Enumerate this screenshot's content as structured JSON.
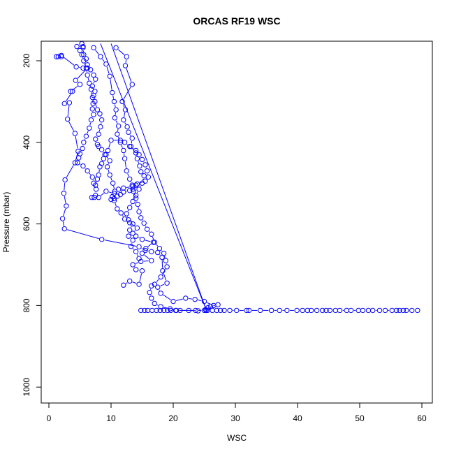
{
  "chart_data": {
    "type": "scatter",
    "title": "ORCAS RF19 WSC",
    "xlabel": "WSC",
    "ylabel": "Pressure (mbar)",
    "xlim": [
      0,
      60
    ],
    "ylim": [
      1050,
      155
    ],
    "y_reversed": true,
    "x_ticks": [
      0,
      10,
      20,
      30,
      40,
      50,
      60
    ],
    "y_ticks": [
      200,
      400,
      600,
      800,
      1000
    ],
    "grid": false,
    "legend": "none",
    "color": "#0000ff",
    "marker": "open-circle",
    "series": [
      {
        "points": [
          [
            1.2,
            190
          ],
          [
            1.5,
            190
          ],
          [
            2.0,
            190
          ],
          [
            2.0,
            187
          ],
          [
            4.4,
            215
          ],
          [
            5.5,
            218
          ],
          [
            6.2,
            218
          ],
          [
            4.3,
            248
          ],
          [
            5.0,
            258
          ],
          [
            3.5,
            275
          ],
          [
            3.8,
            275
          ],
          [
            2.5,
            305
          ],
          [
            3.3,
            303
          ],
          [
            3.0,
            343
          ],
          [
            4.2,
            378
          ],
          [
            4.7,
            422
          ],
          [
            4.2,
            450
          ],
          [
            2.6,
            492
          ],
          [
            2.4,
            525
          ],
          [
            2.8,
            556
          ],
          [
            2.2,
            587
          ],
          [
            2.5,
            612
          ],
          [
            8.5,
            638
          ],
          [
            14.5,
            656
          ],
          [
            15.5,
            665
          ],
          [
            16.5,
            668
          ],
          [
            17.5,
            670
          ],
          [
            18.2,
            682
          ],
          [
            18.3,
            715
          ],
          [
            19.0,
            745
          ],
          [
            17.5,
            755
          ],
          [
            18.0,
            770
          ],
          [
            20.0,
            790
          ],
          [
            22.0,
            782
          ],
          [
            23.5,
            785
          ],
          [
            25.0,
            790
          ],
          [
            26.5,
            800
          ],
          [
            25.3,
            812
          ]
        ]
      },
      {
        "points": [
          [
            12.0,
            750
          ],
          [
            13.0,
            740
          ],
          [
            14.5,
            748
          ],
          [
            15.0,
            715
          ],
          [
            14.0,
            712
          ],
          [
            13.5,
            700
          ],
          [
            14.8,
            692
          ],
          [
            16.5,
            690
          ],
          [
            15.0,
            672
          ],
          [
            15.6,
            660
          ],
          [
            16.8,
            645
          ],
          [
            15.0,
            638
          ],
          [
            14.0,
            630
          ],
          [
            13.5,
            623
          ],
          [
            14.2,
            610
          ],
          [
            13.0,
            597
          ],
          [
            12.2,
            588
          ],
          [
            11.6,
            573
          ],
          [
            11.0,
            563
          ],
          [
            10.5,
            543
          ],
          [
            10.2,
            533
          ],
          [
            10.6,
            520
          ],
          [
            10.3,
            500
          ],
          [
            9.8,
            480
          ],
          [
            9.4,
            460
          ],
          [
            9.8,
            445
          ],
          [
            9.0,
            430
          ],
          [
            8.5,
            418
          ],
          [
            8.0,
            410
          ],
          [
            7.8,
            405
          ],
          [
            7.5,
            392
          ],
          [
            8.0,
            380
          ],
          [
            8.3,
            362
          ],
          [
            8.5,
            345
          ],
          [
            8.2,
            330
          ],
          [
            7.8,
            320
          ],
          [
            7.4,
            300
          ],
          [
            7.2,
            285
          ],
          [
            7.4,
            275
          ],
          [
            7.0,
            262
          ],
          [
            7.5,
            245
          ],
          [
            7.2,
            235
          ],
          [
            6.7,
            222
          ],
          [
            6.2,
            210
          ],
          [
            6.0,
            195
          ],
          [
            5.6,
            185
          ],
          [
            5.5,
            168
          ],
          [
            5.3,
            158
          ]
        ]
      },
      {
        "points": [
          [
            10.8,
            168
          ],
          [
            12.5,
            190
          ],
          [
            12.3,
            212
          ],
          [
            13.4,
            258
          ],
          [
            11.8,
            300
          ],
          [
            12.3,
            320
          ],
          [
            12.0,
            345
          ],
          [
            12.6,
            362
          ],
          [
            12.8,
            375
          ],
          [
            13.4,
            390
          ],
          [
            13.2,
            410
          ],
          [
            14.0,
            426
          ],
          [
            14.2,
            440
          ],
          [
            14.6,
            458
          ],
          [
            14.8,
            472
          ],
          [
            15.3,
            482
          ],
          [
            15.0,
            500
          ],
          [
            14.5,
            515
          ],
          [
            14.0,
            530
          ],
          [
            13.5,
            545
          ],
          [
            13.0,
            560
          ],
          [
            12.5,
            575
          ],
          [
            12.8,
            590
          ],
          [
            13.5,
            600
          ],
          [
            13.0,
            615
          ],
          [
            12.8,
            630
          ],
          [
            13.5,
            640
          ],
          [
            13.2,
            655
          ],
          [
            14.0,
            668
          ],
          [
            14.5,
            685
          ]
        ]
      },
      {
        "points": [
          [
            7.2,
            168
          ],
          [
            8.3,
            190
          ],
          [
            9.2,
            208
          ],
          [
            9.8,
            238
          ],
          [
            10.2,
            278
          ],
          [
            10.5,
            300
          ],
          [
            10.8,
            320
          ],
          [
            10.6,
            340
          ],
          [
            11.2,
            360
          ],
          [
            11.0,
            380
          ],
          [
            11.5,
            400
          ],
          [
            12.0,
            420
          ],
          [
            12.2,
            440
          ],
          [
            12.5,
            470
          ],
          [
            13.0,
            490
          ],
          [
            13.4,
            505
          ],
          [
            13.6,
            520
          ],
          [
            14.0,
            537
          ],
          [
            14.3,
            552
          ],
          [
            14.5,
            570
          ],
          [
            14.8,
            585
          ],
          [
            15.3,
            598
          ],
          [
            15.8,
            613
          ],
          [
            16.5,
            625
          ],
          [
            17.0,
            645
          ],
          [
            17.8,
            660
          ],
          [
            18.5,
            672
          ],
          [
            18.8,
            690
          ],
          [
            19.0,
            705
          ],
          [
            18.0,
            730
          ],
          [
            17.0,
            748
          ],
          [
            16.5,
            752
          ],
          [
            16.2,
            768
          ],
          [
            16.5,
            782
          ],
          [
            17.0,
            795
          ],
          [
            18.0,
            803
          ],
          [
            19.5,
            808
          ],
          [
            20.5,
            812
          ],
          [
            22.5,
            812
          ],
          [
            24.0,
            813
          ]
        ]
      },
      {
        "points": [
          [
            4.5,
            165
          ],
          [
            5.5,
            165
          ],
          [
            5.0,
            175
          ],
          [
            5.3,
            185
          ],
          [
            5.6,
            200
          ],
          [
            6.0,
            218
          ],
          [
            6.2,
            235
          ],
          [
            6.5,
            255
          ],
          [
            6.8,
            270
          ],
          [
            7.0,
            290
          ],
          [
            7.1,
            305
          ],
          [
            7.0,
            318
          ],
          [
            7.2,
            332
          ],
          [
            6.8,
            345
          ],
          [
            6.5,
            365
          ],
          [
            6.0,
            385
          ],
          [
            5.6,
            400
          ],
          [
            5.4,
            415
          ],
          [
            5.0,
            428
          ],
          [
            4.8,
            438
          ],
          [
            4.6,
            450
          ],
          [
            5.5,
            458
          ],
          [
            6.2,
            470
          ],
          [
            7.0,
            485
          ],
          [
            7.2,
            500
          ],
          [
            7.6,
            515
          ],
          [
            7.5,
            530
          ],
          [
            7.3,
            535
          ],
          [
            6.9,
            535
          ]
        ]
      },
      {
        "points": [
          [
            8.0,
            535
          ],
          [
            9.2,
            520
          ],
          [
            10.5,
            525
          ],
          [
            11.2,
            515
          ],
          [
            12.0,
            512
          ],
          [
            13.5,
            508
          ],
          [
            14.2,
            502
          ],
          [
            15.5,
            495
          ],
          [
            16.0,
            485
          ],
          [
            15.8,
            470
          ],
          [
            15.5,
            455
          ],
          [
            15.0,
            442
          ],
          [
            14.5,
            430
          ],
          [
            14.0,
            420
          ],
          [
            13.0,
            410
          ],
          [
            12.2,
            400
          ],
          [
            11.5,
            395
          ],
          [
            10.0,
            395
          ],
          [
            9.5,
            420
          ],
          [
            9.2,
            430
          ],
          [
            8.8,
            440
          ],
          [
            8.5,
            452
          ],
          [
            8.2,
            460
          ],
          [
            8.0,
            480
          ],
          [
            7.8,
            490
          ],
          [
            7.5,
            505
          ]
        ]
      },
      {
        "points": [
          [
            10.0,
            540
          ],
          [
            10.5,
            538
          ],
          [
            11.0,
            532
          ],
          [
            11.5,
            528
          ],
          [
            12.0,
            522
          ],
          [
            13.0,
            518
          ],
          [
            13.5,
            515
          ],
          [
            14.0,
            505
          ]
        ]
      },
      {
        "points": [
          [
            14.8,
            812
          ],
          [
            15.4,
            812
          ],
          [
            15.9,
            812
          ],
          [
            16.6,
            812
          ],
          [
            17.3,
            812
          ],
          [
            17.9,
            812
          ],
          [
            18.5,
            812
          ],
          [
            19.1,
            812
          ],
          [
            19.6,
            812
          ],
          [
            20.4,
            812
          ],
          [
            21.1,
            812
          ],
          [
            23.6,
            812
          ],
          [
            25.0,
            812
          ],
          [
            25.5,
            812
          ],
          [
            26.3,
            812
          ],
          [
            27.0,
            812
          ],
          [
            27.6,
            812
          ],
          [
            28.2,
            812
          ],
          [
            29.1,
            812
          ],
          [
            30.2,
            812
          ],
          [
            31.8,
            812
          ],
          [
            32.2,
            812
          ],
          [
            34.0,
            812
          ],
          [
            35.8,
            812
          ],
          [
            37.1,
            812
          ],
          [
            38.3,
            812
          ],
          [
            39.9,
            812
          ],
          [
            40.8,
            812
          ],
          [
            41.6,
            812
          ],
          [
            42.2,
            812
          ],
          [
            43.1,
            812
          ],
          [
            44.0,
            812
          ],
          [
            44.6,
            812
          ],
          [
            45.2,
            812
          ],
          [
            46.1,
            812
          ],
          [
            46.8,
            812
          ],
          [
            47.9,
            812
          ],
          [
            48.6,
            812
          ],
          [
            49.8,
            812
          ],
          [
            50.5,
            812
          ],
          [
            51.4,
            812
          ],
          [
            52.1,
            812
          ],
          [
            53.2,
            812
          ],
          [
            54.1,
            812
          ],
          [
            55.2,
            812
          ],
          [
            55.9,
            812
          ],
          [
            56.4,
            812
          ],
          [
            57.0,
            812
          ],
          [
            57.5,
            812
          ],
          [
            58.4,
            812
          ],
          [
            59.3,
            812
          ]
        ]
      },
      {
        "points": [
          [
            25.2,
            810
          ],
          [
            25.6,
            805
          ],
          [
            26.0,
            802
          ],
          [
            27.2,
            798
          ]
        ]
      }
    ],
    "extra_lines": [
      {
        "points": [
          [
            8.3,
            158
          ],
          [
            25.3,
            810
          ]
        ]
      },
      {
        "points": [
          [
            10.0,
            158
          ],
          [
            25.3,
            810
          ]
        ]
      }
    ]
  }
}
